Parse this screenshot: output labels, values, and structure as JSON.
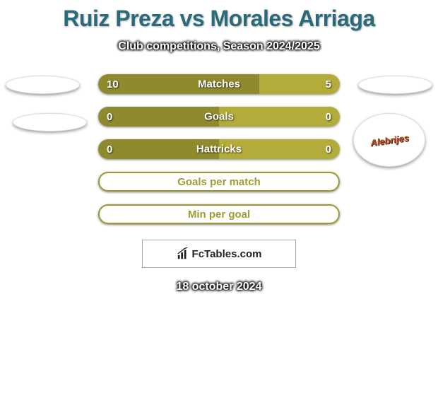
{
  "title": "Ruiz Preza vs Morales Arriaga",
  "subtitle": "Club competitions, Season 2024/2025",
  "date": "18 october 2024",
  "attribution": "FcTables.com",
  "colors": {
    "title_color": "#2a6a7a",
    "left_bar": "#8f8a2e",
    "right_bar": "#b3ac3a",
    "empty_border": "#9e972f",
    "empty_text": "#a09a33",
    "background": "#ffffff"
  },
  "badges": {
    "right_team": "Alebrijes"
  },
  "stats": [
    {
      "label": "Matches",
      "left_value": "10",
      "right_value": "5",
      "left_pct": 66.67,
      "right_pct": 33.33,
      "type": "split"
    },
    {
      "label": "Goals",
      "left_value": "0",
      "right_value": "0",
      "left_pct": 50,
      "right_pct": 50,
      "type": "split"
    },
    {
      "label": "Hattricks",
      "left_value": "0",
      "right_value": "0",
      "left_pct": 50,
      "right_pct": 50,
      "type": "split"
    },
    {
      "label": "Goals per match",
      "type": "empty"
    },
    {
      "label": "Min per goal",
      "type": "empty"
    }
  ]
}
